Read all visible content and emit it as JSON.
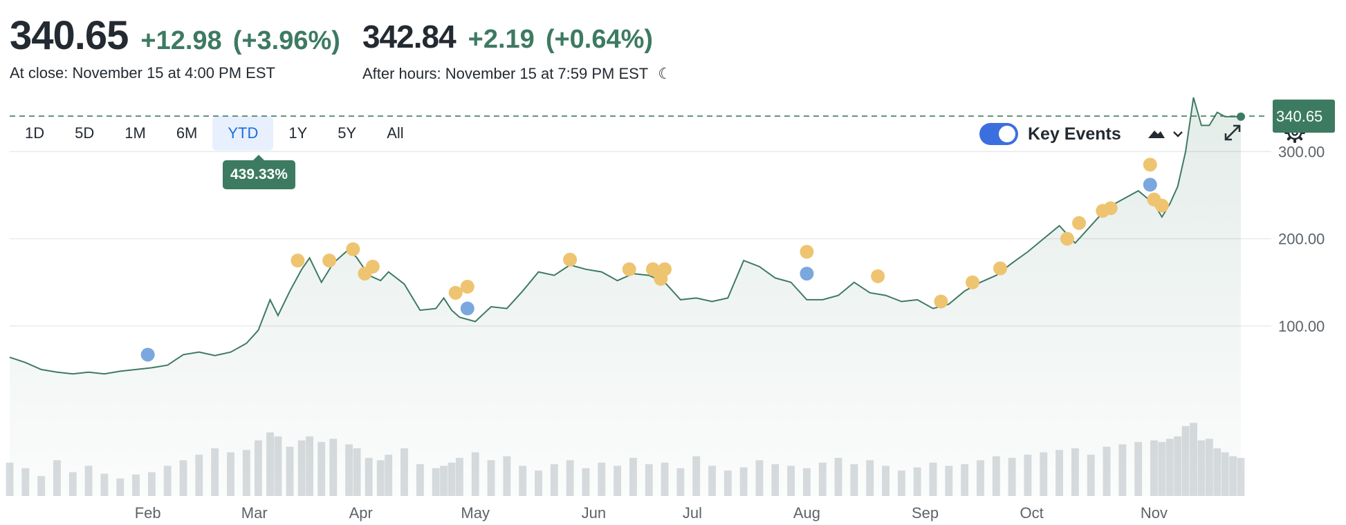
{
  "quote": {
    "close_price": "340.65",
    "close_change": "+12.98",
    "close_pct": "(+3.96%)",
    "close_label": "At close: November 15 at 4:00 PM EST",
    "after_price": "342.84",
    "after_change": "+2.19",
    "after_pct": "(+0.64%)",
    "after_label": "After hours: November 15 at 7:59 PM EST"
  },
  "ranges": [
    "1D",
    "5D",
    "1M",
    "6M",
    "YTD",
    "1Y",
    "5Y",
    "All"
  ],
  "active_range": "YTD",
  "range_tooltip": "439.33%",
  "controls": {
    "key_events_label": "Key Events",
    "key_events_on": true
  },
  "colors": {
    "up": "#3d7a62",
    "event_gold": "#eec470",
    "event_blue": "#7aa7de",
    "toggle": "#3b6fe0"
  },
  "chart_data": {
    "type": "line",
    "current_label": "340.65",
    "current_value": 340.65,
    "y_ticks": [
      100,
      200,
      300
    ],
    "y_tick_labels": [
      "100.00",
      "200.00",
      "300.00"
    ],
    "ylim": [
      0,
      350
    ],
    "x_labels": [
      "Feb",
      "Mar",
      "Apr",
      "May",
      "Jun",
      "Jul",
      "Aug",
      "Sep",
      "Oct",
      "Nov"
    ],
    "x_label_days": [
      35,
      62,
      89,
      118,
      148,
      173,
      202,
      232,
      259,
      290
    ],
    "days": [
      0,
      4,
      8,
      12,
      16,
      20,
      24,
      28,
      32,
      36,
      40,
      44,
      48,
      52,
      56,
      60,
      63,
      66,
      68,
      71,
      74,
      76,
      79,
      82,
      86,
      88,
      91,
      94,
      96,
      100,
      104,
      108,
      110,
      112,
      114,
      118,
      122,
      126,
      130,
      134,
      138,
      142,
      146,
      150,
      154,
      158,
      162,
      166,
      170,
      174,
      178,
      182,
      186,
      190,
      194,
      198,
      202,
      206,
      210,
      214,
      218,
      222,
      226,
      230,
      234,
      238,
      242,
      246,
      250,
      254,
      258,
      262,
      266,
      270,
      274,
      278,
      282,
      286,
      290,
      292,
      294,
      296,
      298,
      300,
      302,
      304,
      306,
      308,
      310,
      312
    ],
    "price": [
      64,
      58,
      50,
      47,
      45,
      47,
      45,
      48,
      50,
      52,
      55,
      67,
      70,
      66,
      70,
      80,
      95,
      130,
      112,
      140,
      165,
      178,
      150,
      172,
      188,
      178,
      158,
      152,
      162,
      148,
      118,
      120,
      132,
      118,
      110,
      105,
      122,
      120,
      140,
      162,
      158,
      170,
      165,
      162,
      152,
      160,
      158,
      150,
      130,
      132,
      128,
      132,
      175,
      168,
      155,
      150,
      130,
      130,
      135,
      150,
      138,
      135,
      128,
      130,
      120,
      125,
      140,
      150,
      158,
      172,
      185,
      200,
      215,
      195,
      215,
      235,
      245,
      255,
      240,
      225,
      240,
      260,
      300,
      362,
      330,
      330,
      345,
      340,
      340,
      340
    ],
    "volume": [
      42,
      35,
      25,
      45,
      30,
      38,
      28,
      22,
      27,
      30,
      38,
      45,
      52,
      60,
      55,
      58,
      70,
      80,
      75,
      62,
      70,
      75,
      68,
      72,
      65,
      60,
      48,
      45,
      52,
      60,
      40,
      35,
      38,
      42,
      48,
      55,
      45,
      50,
      38,
      32,
      40,
      45,
      35,
      42,
      38,
      48,
      40,
      42,
      35,
      50,
      38,
      32,
      36,
      45,
      40,
      38,
      35,
      42,
      48,
      40,
      45,
      38,
      32,
      36,
      42,
      38,
      40,
      45,
      50,
      48,
      52,
      55,
      58,
      60,
      52,
      62,
      65,
      68,
      70,
      68,
      72,
      75,
      88,
      92,
      70,
      72,
      60,
      55,
      50,
      48
    ],
    "events_gold": [
      [
        73,
        175
      ],
      [
        81,
        175
      ],
      [
        87,
        188
      ],
      [
        90,
        160
      ],
      [
        92,
        168
      ],
      [
        113,
        138
      ],
      [
        116,
        145
      ],
      [
        142,
        176
      ],
      [
        157,
        165
      ],
      [
        163,
        165
      ],
      [
        165,
        154
      ],
      [
        166,
        165
      ],
      [
        202,
        185
      ],
      [
        220,
        157
      ],
      [
        236,
        128
      ],
      [
        244,
        150
      ],
      [
        251,
        166
      ],
      [
        268,
        200
      ],
      [
        271,
        218
      ],
      [
        277,
        232
      ],
      [
        279,
        235
      ],
      [
        289,
        285
      ],
      [
        290,
        245
      ],
      [
        292,
        238
      ]
    ],
    "events_blue": [
      [
        35,
        67
      ],
      [
        116,
        120
      ],
      [
        202,
        160
      ],
      [
        289,
        262
      ]
    ]
  }
}
